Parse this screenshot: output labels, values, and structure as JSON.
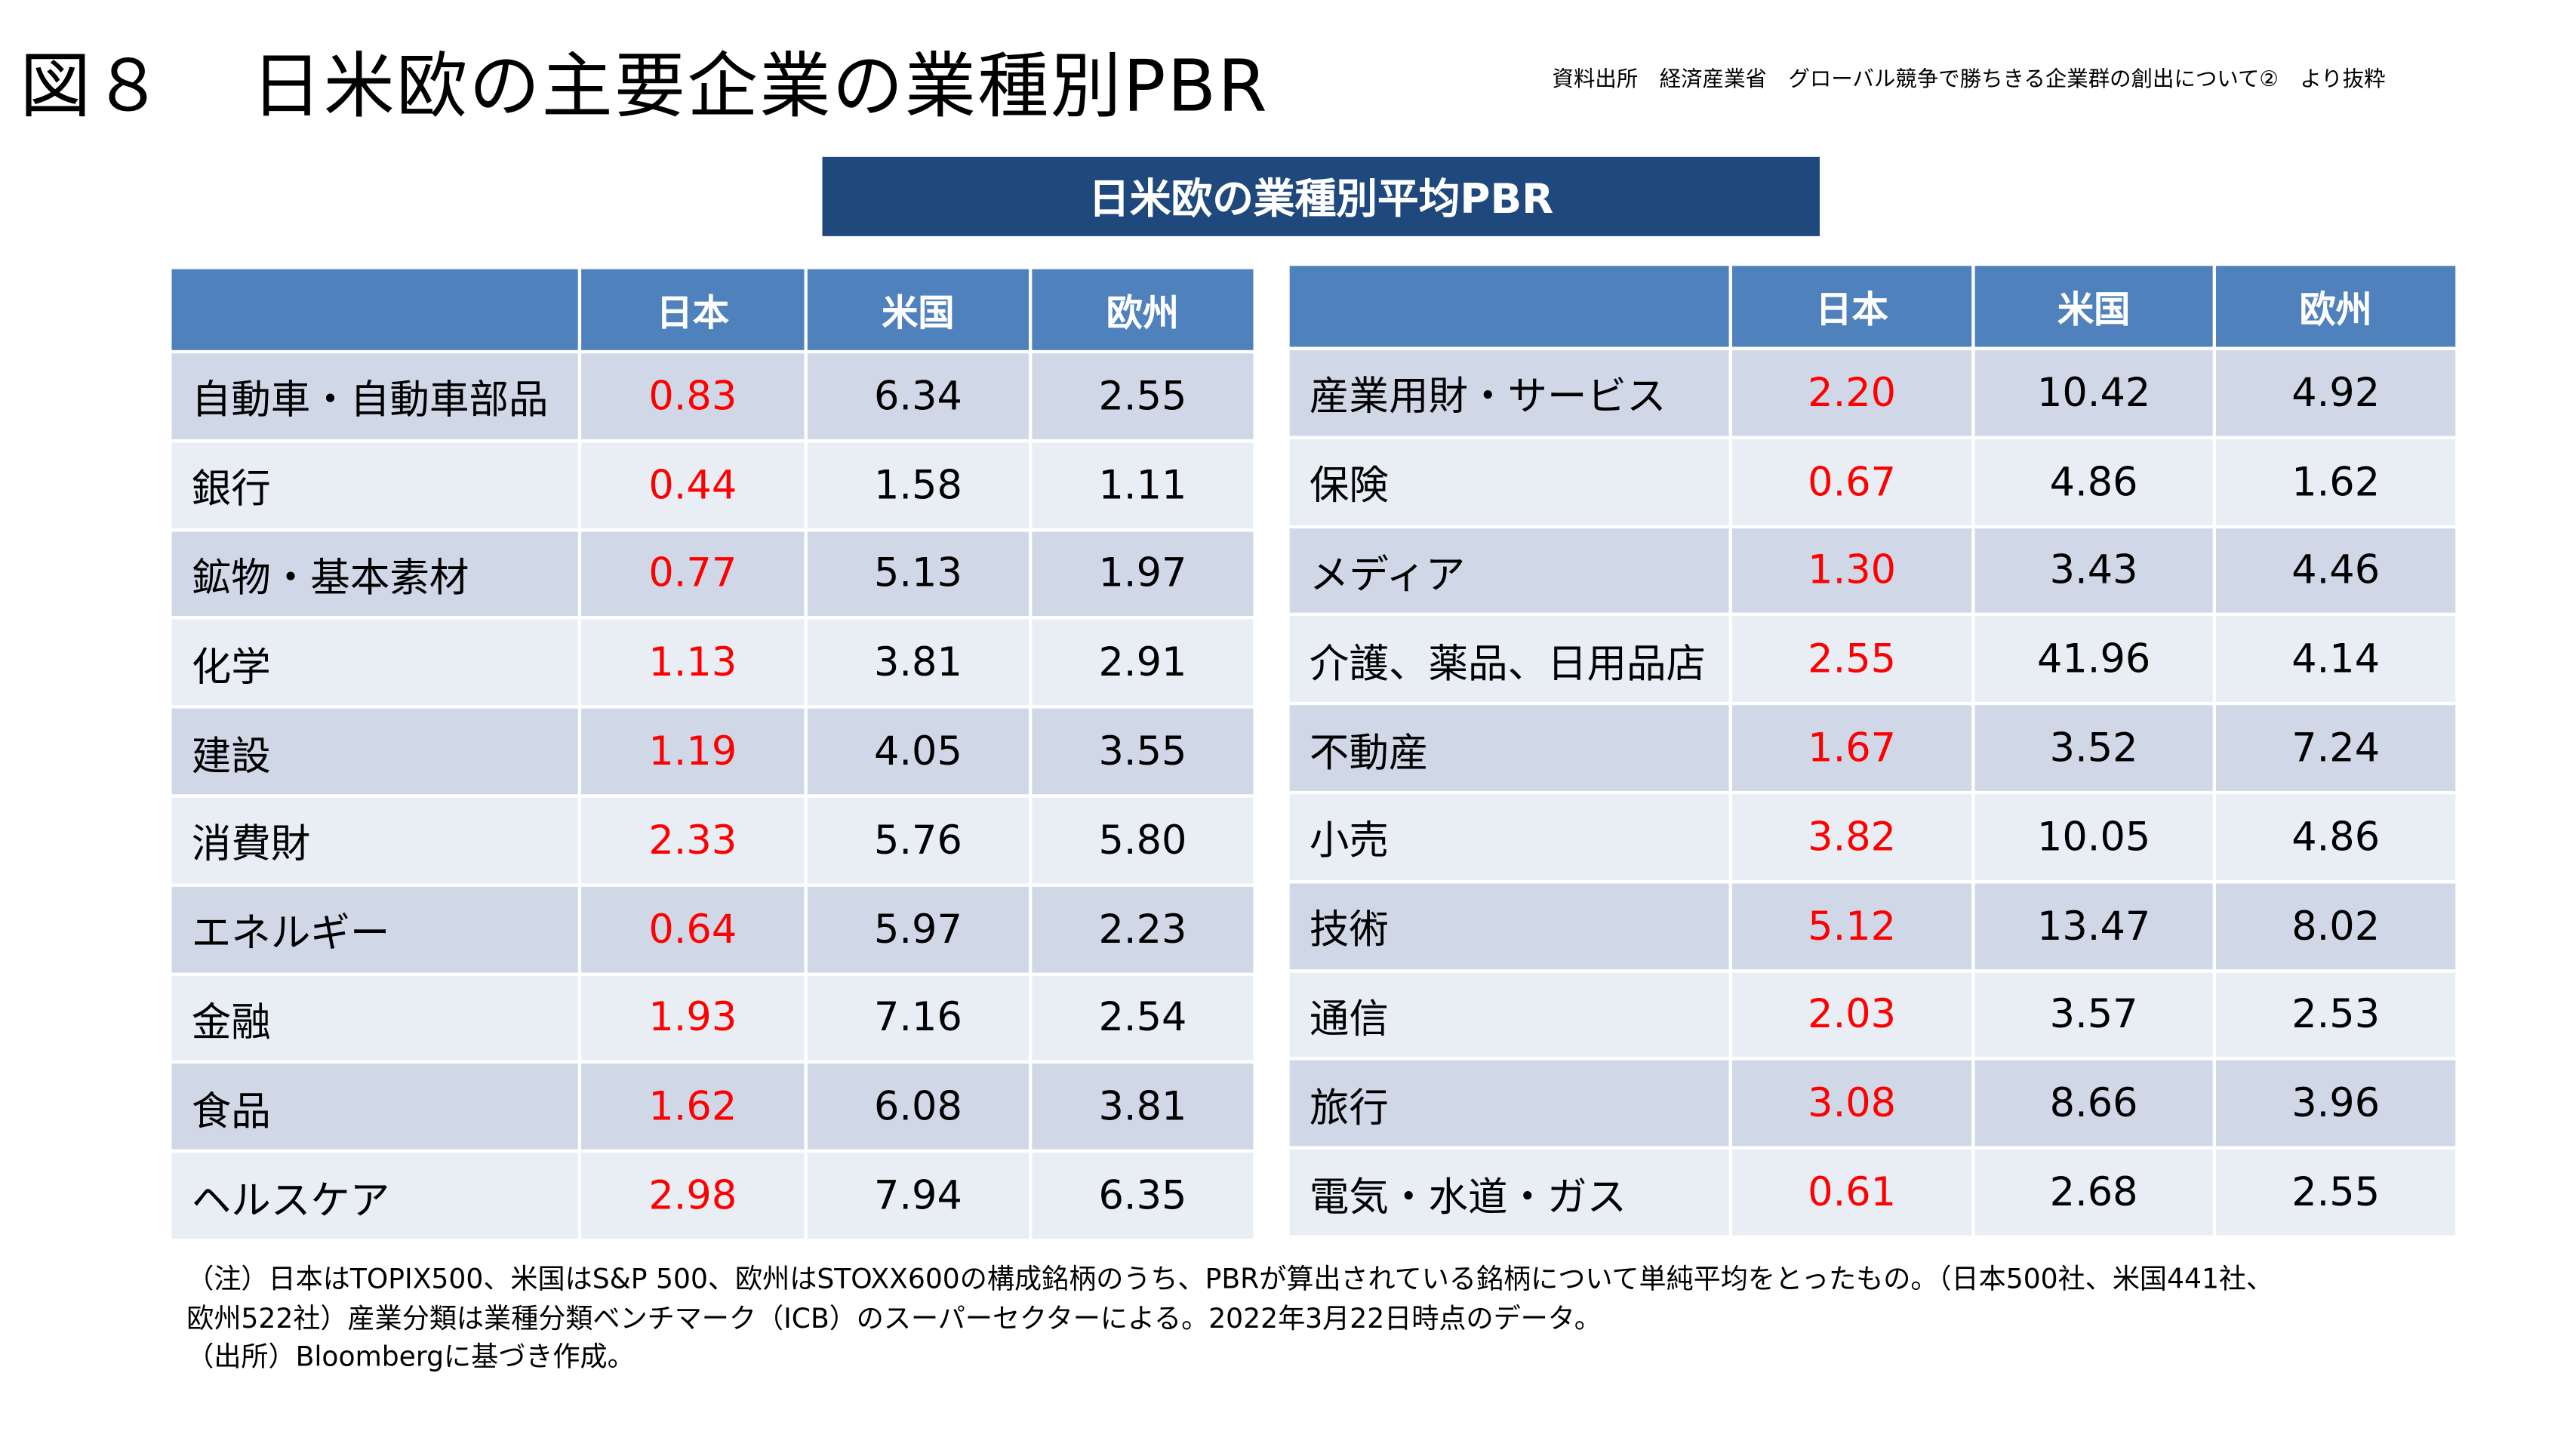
{
  "header": {
    "figure_no": "図８",
    "title": "日米欧の主要企業の業種別PBR",
    "source": "資料出所　経済産業省　グローバル競争で勝ちきる企業群の創出について②　より抜粋"
  },
  "banner": "日米欧の業種別平均PBR",
  "columns": [
    "",
    "日本",
    "米国",
    "欧州"
  ],
  "accent_colors": {
    "header": "#4f81bd",
    "banner": "#1f497d",
    "japan_value": "#ff0000"
  },
  "left_table": [
    {
      "sector": "自動車・自動車部品",
      "japan": "0.83",
      "us": "6.34",
      "europe": "2.55"
    },
    {
      "sector": "銀行",
      "japan": "0.44",
      "us": "1.58",
      "europe": "1.11"
    },
    {
      "sector": "鉱物・基本素材",
      "japan": "0.77",
      "us": "5.13",
      "europe": "1.97"
    },
    {
      "sector": "化学",
      "japan": "1.13",
      "us": "3.81",
      "europe": "2.91"
    },
    {
      "sector": "建設",
      "japan": "1.19",
      "us": "4.05",
      "europe": "3.55"
    },
    {
      "sector": "消費財",
      "japan": "2.33",
      "us": "5.76",
      "europe": "5.80"
    },
    {
      "sector": "エネルギー",
      "japan": "0.64",
      "us": "5.97",
      "europe": "2.23"
    },
    {
      "sector": "金融",
      "japan": "1.93",
      "us": "7.16",
      "europe": "2.54"
    },
    {
      "sector": "食品",
      "japan": "1.62",
      "us": "6.08",
      "europe": "3.81"
    },
    {
      "sector": "ヘルスケア",
      "japan": "2.98",
      "us": "7.94",
      "europe": "6.35"
    }
  ],
  "right_table": [
    {
      "sector": "産業用財・サービス",
      "japan": "2.20",
      "us": "10.42",
      "europe": "4.92"
    },
    {
      "sector": "保険",
      "japan": "0.67",
      "us": "4.86",
      "europe": "1.62"
    },
    {
      "sector": "メディア",
      "japan": "1.30",
      "us": "3.43",
      "europe": "4.46"
    },
    {
      "sector": "介護、薬品、日用品店",
      "japan": "2.55",
      "us": "41.96",
      "europe": "4.14"
    },
    {
      "sector": "不動産",
      "japan": "1.67",
      "us": "3.52",
      "europe": "7.24"
    },
    {
      "sector": "小売",
      "japan": "3.82",
      "us": "10.05",
      "europe": "4.86"
    },
    {
      "sector": "技術",
      "japan": "5.12",
      "us": "13.47",
      "europe": "8.02"
    },
    {
      "sector": "通信",
      "japan": "2.03",
      "us": "3.57",
      "europe": "2.53"
    },
    {
      "sector": "旅行",
      "japan": "3.08",
      "us": "8.66",
      "europe": "3.96"
    },
    {
      "sector": "電気・水道・ガス",
      "japan": "0.61",
      "us": "2.68",
      "europe": "2.55"
    }
  ],
  "notes": [
    "（注）日本はTOPIX500、米国はS&P 500、欧州はSTOXX600の構成銘柄のうち、PBRが算出されている銘柄について単純平均をとったもの。（日本500社、米国441社、",
    "欧州522社）産業分類は業種分類ベンチマーク（ICB）のスーパーセクターによる。2022年3月22日時点のデータ。",
    "（出所）Bloombergに基づき作成。"
  ]
}
